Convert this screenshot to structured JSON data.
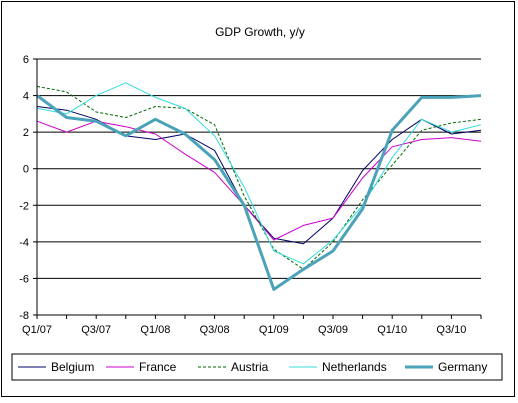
{
  "chart_data": {
    "type": "line",
    "title": "GDP Growth, y/y",
    "xlabel": "",
    "ylabel": "",
    "x": [
      "Q1/07",
      "Q2/07",
      "Q3/07",
      "Q4/07",
      "Q1/08",
      "Q2/08",
      "Q3/08",
      "Q4/08",
      "Q1/09",
      "Q2/09",
      "Q3/09",
      "Q4/09",
      "Q1/10",
      "Q2/10",
      "Q3/10",
      "Q4/10"
    ],
    "x_tick_labels": [
      "Q1/07",
      "Q3/07",
      "Q1/08",
      "Q3/08",
      "Q1/09",
      "Q3/09",
      "Q1/10",
      "Q3/10"
    ],
    "ylim": [
      -8,
      6
    ],
    "y_ticks": [
      6,
      4,
      2,
      0,
      -2,
      -4,
      -6,
      -8
    ],
    "grid": "horizontal",
    "legend_placement": "bottom",
    "series": [
      {
        "name": "Belgium",
        "color": "#000066",
        "style": "solid",
        "width": "thin",
        "values": [
          3.4,
          3.2,
          2.7,
          1.8,
          1.6,
          1.9,
          1.0,
          -2.0,
          -3.8,
          -4.1,
          -2.7,
          -0.1,
          1.6,
          2.7,
          1.9,
          2.1
        ]
      },
      {
        "name": "France",
        "color": "#cc00cc",
        "style": "solid",
        "width": "thin",
        "values": [
          2.6,
          2.0,
          2.6,
          2.3,
          1.9,
          0.8,
          -0.2,
          -2.0,
          -3.9,
          -3.1,
          -2.7,
          -0.5,
          1.2,
          1.6,
          1.7,
          1.5
        ]
      },
      {
        "name": "Austria",
        "color": "#006600",
        "style": "dashed",
        "width": "thin",
        "values": [
          4.5,
          4.2,
          3.1,
          2.8,
          3.4,
          3.3,
          2.4,
          -1.5,
          -4.4,
          -5.5,
          -4.0,
          -1.7,
          0.2,
          2.1,
          2.5,
          2.7
        ]
      },
      {
        "name": "Netherlands",
        "color": "#33dddd",
        "style": "solid",
        "width": "thin",
        "values": [
          3.3,
          3.0,
          4.0,
          4.7,
          3.9,
          3.3,
          1.8,
          -1.0,
          -4.5,
          -5.2,
          -3.9,
          -2.0,
          0.6,
          2.7,
          2.0,
          2.4
        ]
      },
      {
        "name": "Germany",
        "color": "#4aa3b8",
        "style": "solid",
        "width": "thick",
        "values": [
          4.0,
          2.8,
          2.6,
          1.8,
          2.7,
          1.9,
          0.5,
          -2.0,
          -6.6,
          -5.5,
          -4.5,
          -2.2,
          2.1,
          3.9,
          3.9,
          4.0
        ]
      }
    ]
  }
}
